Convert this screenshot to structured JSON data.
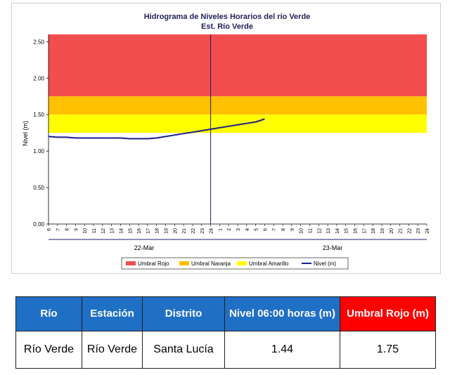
{
  "chart_data": {
    "type": "line",
    "title": "Hidrograma de Niveles Horarios del río Verde",
    "subtitle": "Est. Río Verde",
    "ylabel": "Nivel (m)",
    "ylim": [
      0,
      2.6
    ],
    "y_ticks": [
      "0.00",
      "0.50",
      "1.00",
      "1.50",
      "2.00",
      "2.50"
    ],
    "x_tick_labels": [
      "6",
      "7",
      "8",
      "9",
      "10",
      "11",
      "12",
      "13",
      "14",
      "15",
      "16",
      "17",
      "18",
      "19",
      "20",
      "21",
      "22",
      "23",
      "24",
      "1",
      "2",
      "3",
      "4",
      "5",
      "6",
      "7",
      "8",
      "9",
      "10",
      "11",
      "12",
      "13",
      "14",
      "15",
      "16",
      "17",
      "18",
      "19",
      "20",
      "21",
      "22",
      "23",
      "24"
    ],
    "day_labels": [
      "22-Mar",
      "23-Mar"
    ],
    "thresholds": [
      {
        "name": "Umbral Rojo",
        "from": 1.75,
        "to": 2.6,
        "color": "#f44d4d"
      },
      {
        "name": "Umbral Naranja",
        "from": 1.5,
        "to": 1.75,
        "color": "#ffc000"
      },
      {
        "name": "Umbral Amarillo",
        "from": 1.25,
        "to": 1.5,
        "color": "#ffff00"
      }
    ],
    "series": [
      {
        "name": "Nivel (m)",
        "color": "#1a1f8c",
        "x_hours": [
          6,
          7,
          8,
          9,
          10,
          11,
          12,
          13,
          14,
          15,
          16,
          17,
          18,
          19,
          20,
          21,
          22,
          23,
          24,
          25,
          26,
          27,
          28,
          29,
          30
        ],
        "values": [
          1.2,
          1.19,
          1.19,
          1.18,
          1.18,
          1.18,
          1.18,
          1.18,
          1.18,
          1.17,
          1.17,
          1.17,
          1.18,
          1.2,
          1.22,
          1.24,
          1.26,
          1.28,
          1.3,
          1.32,
          1.34,
          1.36,
          1.38,
          1.4,
          1.44
        ]
      }
    ],
    "legend": [
      "Umbral Rojo",
      "Umbral Naranja",
      "Umbral Amarillo",
      "Nivel (m)"
    ],
    "legend_position": "bottom",
    "grid": false
  },
  "table": {
    "headers": [
      "Río",
      "Estación",
      "Distrito",
      "Nivel 06:00 horas (m)",
      "Umbral Rojo (m)"
    ],
    "row": [
      "Río Verde",
      "Río Verde",
      "Santa Lucía",
      "1.44",
      "1.75"
    ]
  }
}
